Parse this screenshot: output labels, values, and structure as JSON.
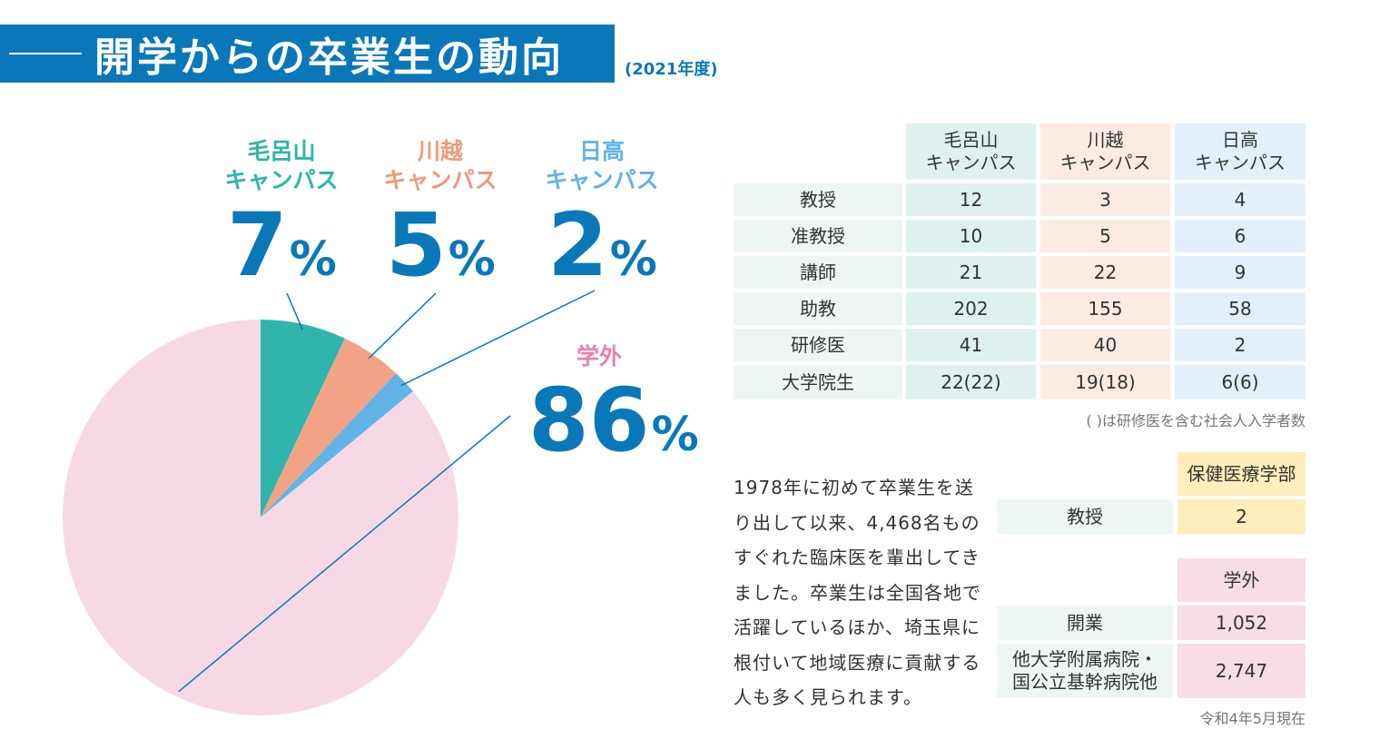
{
  "header": {
    "title": "開学からの卒業生の動向",
    "year": "(2021年度)"
  },
  "chart_data": {
    "type": "pie",
    "title": "開学からの卒業生の動向",
    "unit": "%",
    "slices": [
      {
        "name": "毛呂山キャンパス",
        "label_lines": [
          "毛呂山",
          "キャンパス"
        ],
        "value": 7,
        "color": "#2fb5ab"
      },
      {
        "name": "川越キャンパス",
        "label_lines": [
          "川越",
          "キャンパス"
        ],
        "value": 5,
        "color": "#f2a386"
      },
      {
        "name": "日高キャンパス",
        "label_lines": [
          "日高",
          "キャンパス"
        ],
        "value": 2,
        "color": "#62b3e6"
      },
      {
        "name": "学外",
        "label_lines": [
          "学外"
        ],
        "value": 86,
        "color": "#f7d9e6"
      }
    ],
    "label_colors": [
      "#2fb5ab",
      "#ee9a7d",
      "#62b3e6",
      "#ea7fb0"
    ]
  },
  "campus_table": {
    "headers": [
      "毛呂山\nキャンパス",
      "川越\nキャンパス",
      "日高\nキャンパス"
    ],
    "rows": [
      {
        "label": "教授",
        "values": [
          "12",
          "3",
          "4"
        ]
      },
      {
        "label": "准教授",
        "values": [
          "10",
          "5",
          "6"
        ]
      },
      {
        "label": "講師",
        "values": [
          "21",
          "22",
          "9"
        ]
      },
      {
        "label": "助教",
        "values": [
          "202",
          "155",
          "58"
        ]
      },
      {
        "label": "研修医",
        "values": [
          "41",
          "40",
          "2"
        ]
      },
      {
        "label": "大学院生",
        "values": [
          "22(22)",
          "19(18)",
          "6(6)"
        ]
      }
    ],
    "note": "( )は研修医を含む社会人入学者数"
  },
  "description": "1978年に初めて卒業生を送り出して以来、4,468名ものすぐれた臨床医を輩出してきました。卒業生は全国各地で活躍しているほか、埼玉県に根付いて地域医療に貢献する人も多く見られます。",
  "health_table": {
    "header": "保健医療学部",
    "row_label": "教授",
    "value": "2"
  },
  "external_table": {
    "header": "学外",
    "rows": [
      {
        "label": "開業",
        "value": "1,052"
      },
      {
        "label": "他大学附属病院・\n国公立基幹病院他",
        "value": "2,747"
      }
    ],
    "note": "令和4年5月現在"
  }
}
